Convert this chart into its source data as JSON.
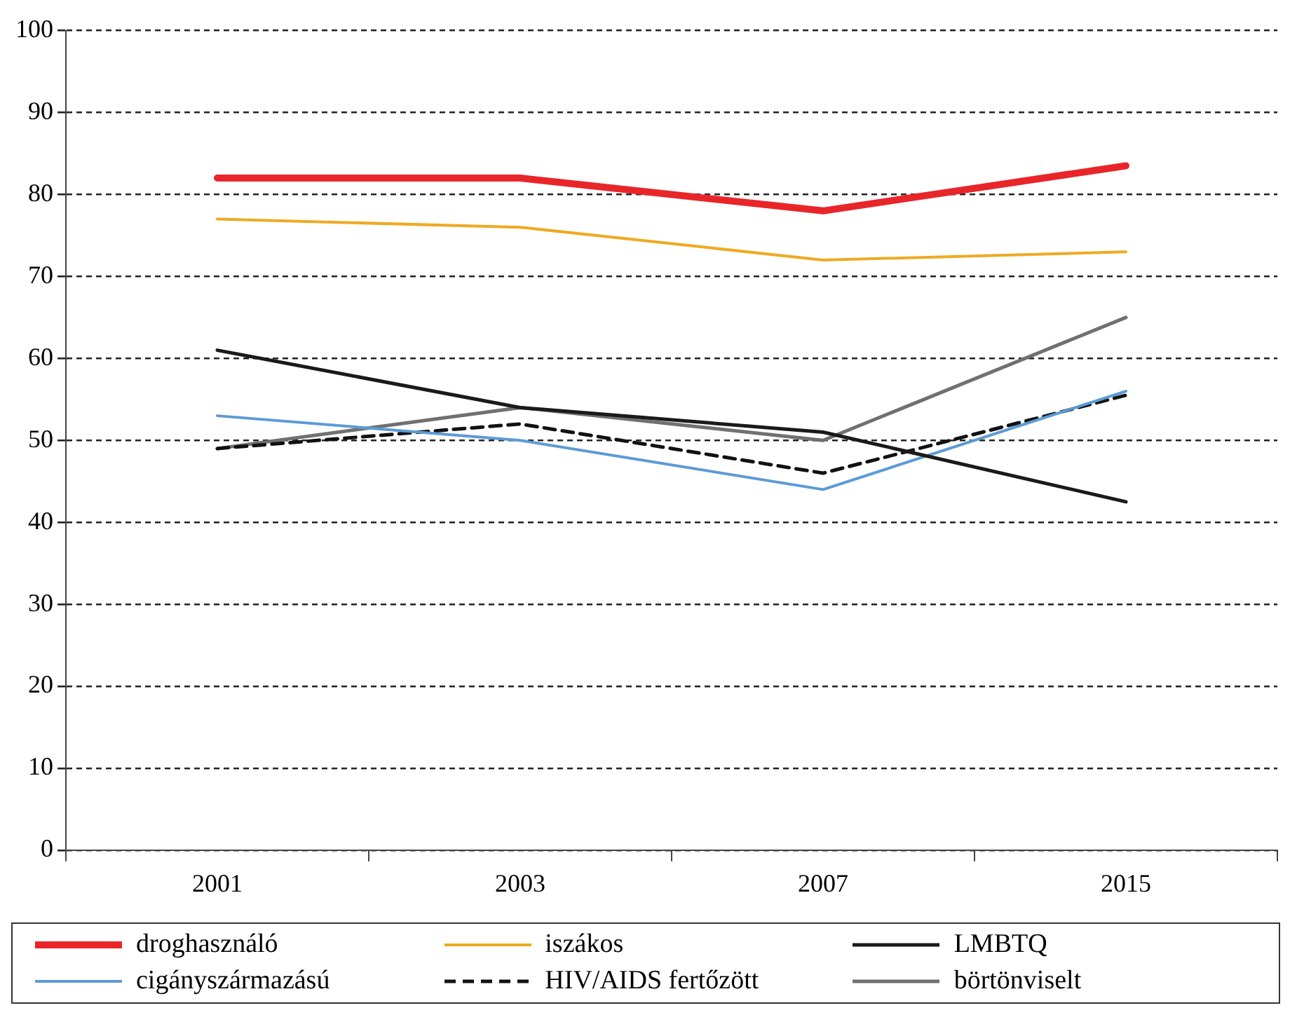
{
  "chart_data": {
    "type": "line",
    "categories": [
      "2001",
      "2003",
      "2007",
      "2015"
    ],
    "series": [
      {
        "name": "droghasználó",
        "color": "#e8262a",
        "values": [
          82,
          82,
          78,
          83.5
        ]
      },
      {
        "name": "iszákos",
        "color": "#eeaa22",
        "values": [
          77,
          76,
          72,
          73
        ]
      },
      {
        "name": "LMBTQ",
        "color": "#1a1a1a",
        "values": [
          61,
          54,
          51,
          42.5
        ]
      },
      {
        "name": "cigányszármazású",
        "color": "#5b9bd5",
        "values": [
          53,
          50,
          44,
          56
        ]
      },
      {
        "name": "HIV/AIDS fertőzött",
        "color": "#111111",
        "line_style": "dashed",
        "values": [
          49,
          52,
          46,
          55.5
        ]
      },
      {
        "name": "börtönviselt",
        "color": "#707070",
        "values": [
          49,
          54,
          50,
          65
        ]
      }
    ],
    "ylim": [
      0,
      100
    ],
    "yticks": [
      0,
      10,
      20,
      30,
      40,
      50,
      60,
      70,
      80,
      90,
      100
    ],
    "grid": "y",
    "legend": "bottom",
    "marker": "none"
  }
}
